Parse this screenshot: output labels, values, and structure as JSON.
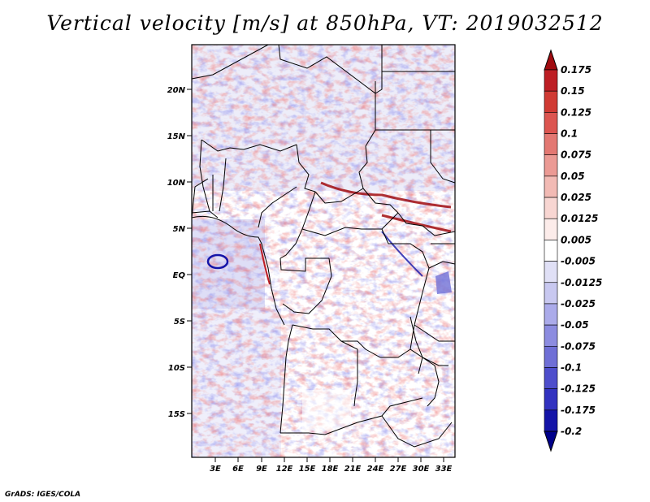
{
  "title": "Vertical velocity [m/s] at 850hPa, VT: 2019032512",
  "footer": "GrADS: IGES/COLA",
  "lat_labels": [
    "20N",
    "15N",
    "10N",
    "5N",
    "EQ",
    "5S",
    "10S",
    "15S"
  ],
  "lon_labels": [
    "3E",
    "6E",
    "9E",
    "12E",
    "15E",
    "18E",
    "21E",
    "24E",
    "27E",
    "30E",
    "33E"
  ],
  "colorbar": {
    "levels": [
      "0.175",
      "0.15",
      "0.125",
      "0.1",
      "0.075",
      "0.05",
      "0.025",
      "0.0125",
      "0.005",
      "-0.005",
      "-0.0125",
      "-0.025",
      "-0.05",
      "-0.075",
      "-0.1",
      "-0.125",
      "-0.175",
      "-0.2"
    ],
    "colors": [
      "#a00c10",
      "#bd1e24",
      "#d03a33",
      "#dc5550",
      "#e37872",
      "#eb9a94",
      "#f2bab4",
      "#f8d6d2",
      "#fcecea",
      "#ffffff",
      "#e0e0f6",
      "#c8c8f0",
      "#ababea",
      "#8c8ce0",
      "#6f6fd6",
      "#4e4ecc",
      "#3232c0",
      "#1414a8",
      "#00008a"
    ]
  }
}
